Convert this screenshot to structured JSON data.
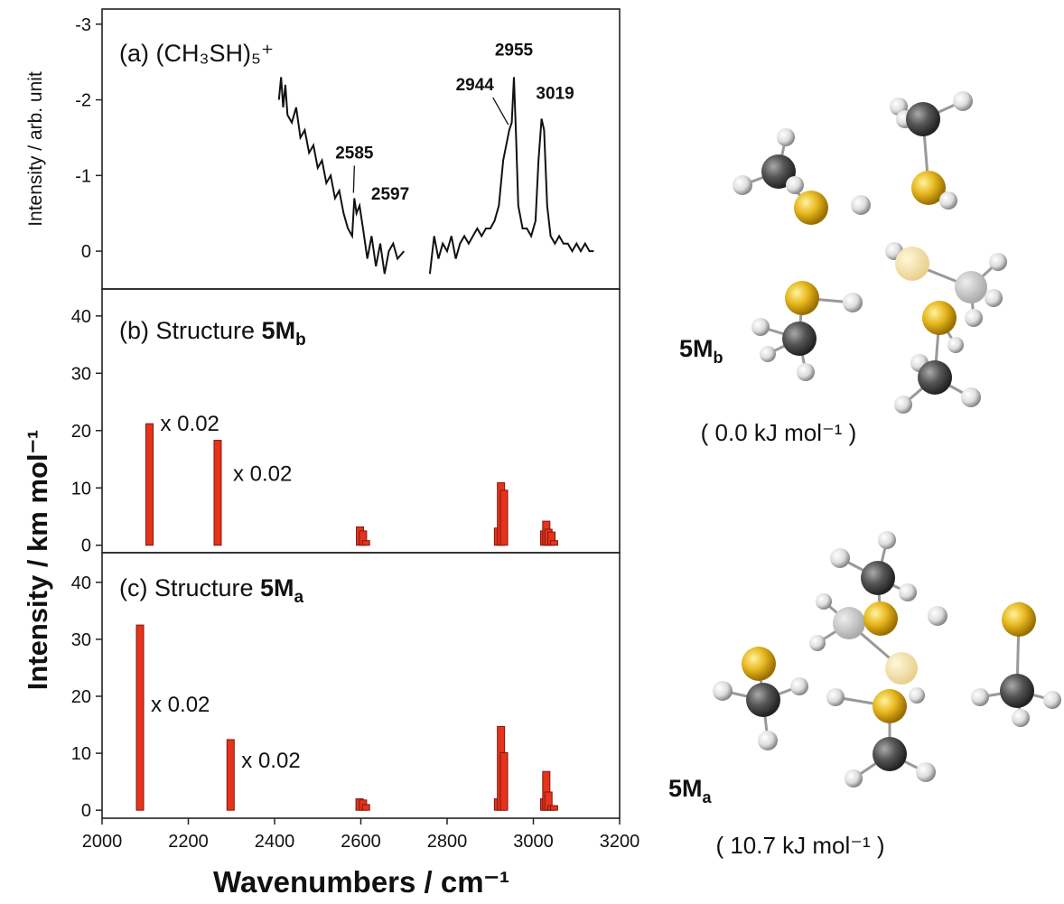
{
  "figure": {
    "xlabel": "Wavenumbers / cm⁻¹",
    "ylabel": "Intensity / km mol⁻¹"
  },
  "chart_data": [
    {
      "type": "line",
      "title": "(a) (CH₃SH)₅⁺",
      "ylabel": "Intensity / arb. unit",
      "color": "#111111",
      "xlim": [
        2000,
        3200
      ],
      "ylim": [
        0.5,
        -3.2
      ],
      "yticks": [
        -3,
        -2,
        -1,
        0
      ],
      "x": [
        2410,
        2415,
        2420,
        2425,
        2430,
        2440,
        2450,
        2460,
        2470,
        2480,
        2490,
        2500,
        2510,
        2520,
        2530,
        2540,
        2550,
        2560,
        2570,
        2580,
        2585,
        2590,
        2597,
        2605,
        2615,
        2625,
        2635,
        2645,
        2655,
        2665,
        2675,
        2685,
        2700,
        2730,
        2760,
        2770,
        2780,
        2790,
        2800,
        2810,
        2820,
        2830,
        2840,
        2850,
        2860,
        2870,
        2880,
        2890,
        2900,
        2910,
        2920,
        2930,
        2944,
        2950,
        2955,
        2960,
        2965,
        2975,
        2985,
        2995,
        3005,
        3012,
        3019,
        3025,
        3032,
        3040,
        3050,
        3060,
        3070,
        3080,
        3090,
        3100,
        3110,
        3120,
        3130,
        3140
      ],
      "values": [
        -2.0,
        -2.3,
        -1.9,
        -2.2,
        -1.8,
        -1.7,
        -1.9,
        -1.5,
        -1.6,
        -1.3,
        -1.4,
        -1.1,
        -1.2,
        -0.9,
        -1.0,
        -0.7,
        -0.8,
        -0.5,
        -0.3,
        -0.2,
        -0.7,
        -0.5,
        -0.6,
        -0.3,
        0.1,
        -0.2,
        0.2,
        -0.1,
        0.3,
        0.0,
        -0.1,
        0.1,
        0.0,
        null,
        0.3,
        -0.2,
        0.1,
        -0.1,
        0.0,
        -0.2,
        0.1,
        -0.1,
        -0.2,
        -0.1,
        -0.2,
        -0.3,
        -0.2,
        -0.3,
        -0.3,
        -0.4,
        -0.6,
        -1.2,
        -1.6,
        -1.7,
        -2.3,
        -1.5,
        -0.6,
        -0.3,
        -0.3,
        -0.2,
        -0.4,
        -1.2,
        -1.75,
        -1.6,
        -0.6,
        -0.2,
        -0.1,
        -0.2,
        -0.1,
        -0.1,
        0.0,
        -0.1,
        0.0,
        -0.1,
        0.0,
        0.0
      ],
      "peak_labels": [
        2585,
        2597,
        2944,
        2955,
        3019
      ]
    },
    {
      "type": "bar",
      "title": "(b) Structure ",
      "structure": "5M",
      "structure_sub": "b",
      "color": "#e8321c",
      "edgecolor": "#7a1a10",
      "xlim": [
        2000,
        3200
      ],
      "ylim": [
        -1.3,
        44.7
      ],
      "yticks": [
        0,
        10,
        20,
        30,
        40
      ],
      "x": [
        2110,
        2268,
        2598,
        2605,
        2612,
        2918,
        2925,
        2932,
        3025,
        3030,
        3035,
        3042,
        3048
      ],
      "values": [
        21.2,
        18.3,
        3.2,
        2.5,
        0.8,
        3.0,
        10.9,
        9.6,
        2.5,
        4.2,
        2.8,
        2.3,
        0.8
      ],
      "annotations": [
        "x 0.02",
        "x 0.02"
      ]
    },
    {
      "type": "bar",
      "title": "(c) Structure ",
      "structure": "5M",
      "structure_sub": "a",
      "color": "#e8321c",
      "edgecolor": "#7a1a10",
      "xlim": [
        2000,
        3200
      ],
      "ylim": [
        -1.4,
        45.2
      ],
      "yticks": [
        0,
        10,
        20,
        30,
        40
      ],
      "xticks": [
        2000,
        2200,
        2400,
        2600,
        2800,
        3000,
        3200
      ],
      "x": [
        2088,
        2298,
        2597,
        2605,
        2612,
        2918,
        2925,
        2932,
        3025,
        3030,
        3035,
        3042,
        3048
      ],
      "values": [
        32.5,
        12.4,
        2.0,
        1.8,
        1.0,
        2.0,
        14.7,
        10.1,
        2.0,
        6.8,
        3.2,
        0.8,
        0.8
      ],
      "annotations": [
        "x 0.02",
        "x 0.02"
      ]
    }
  ],
  "structures": [
    {
      "name": "5M",
      "sub": "b",
      "energy": "( 0.0 kJ mol⁻¹ )"
    },
    {
      "name": "5M",
      "sub": "a",
      "energy": "( 10.7 kJ mol⁻¹ )"
    }
  ]
}
